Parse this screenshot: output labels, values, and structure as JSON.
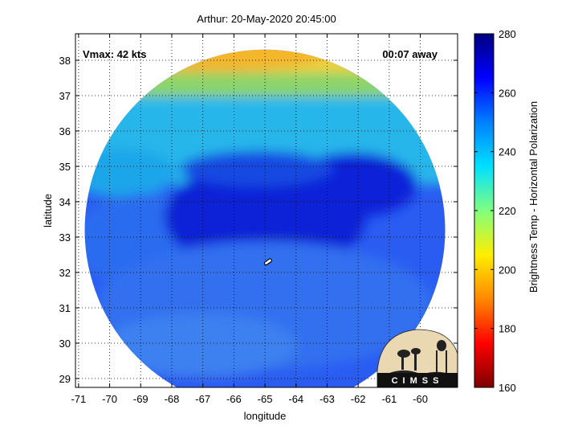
{
  "chart_data": {
    "type": "heatmap",
    "title": "Arthur: 20-May-2020 20:45:00",
    "xlabel": "longitude",
    "ylabel": "latitude",
    "xlim": [
      -71.1,
      -58.8
    ],
    "ylim": [
      28.75,
      38.75
    ],
    "x_ticks": [
      -71,
      -70,
      -69,
      -68,
      -67,
      -66,
      -65,
      -64,
      -63,
      -62,
      -61,
      -60
    ],
    "y_ticks": [
      29,
      30,
      31,
      32,
      33,
      34,
      35,
      36,
      37,
      38
    ],
    "grid": true,
    "annotations": {
      "vmax": "Vmax: 42 kts",
      "time_away": "00:07 away"
    },
    "storm_center": {
      "lon": -64.9,
      "lat": 32.3
    },
    "swath": {
      "center_lon": -65.0,
      "center_lat": 33.2,
      "radius_deg": 5.8
    },
    "colorbar": {
      "label": "Brightness Temp - Horizontal Polarization",
      "ticks": [
        160,
        180,
        200,
        220,
        240,
        260,
        280
      ],
      "range": [
        160,
        280
      ],
      "colors": [
        "#7f0000",
        "#ff0000",
        "#ff8800",
        "#ffee00",
        "#80ff7f",
        "#00e0ff",
        "#0080ff",
        "#0000ff",
        "#00007f"
      ]
    },
    "brightness_regions": [
      {
        "region": "north edge",
        "value": 205
      },
      {
        "region": "middle band",
        "value": 240
      },
      {
        "region": "storm core",
        "value": 262
      },
      {
        "region": "southern area",
        "value": 250
      }
    ]
  },
  "logo": {
    "text": "CIMSS"
  }
}
